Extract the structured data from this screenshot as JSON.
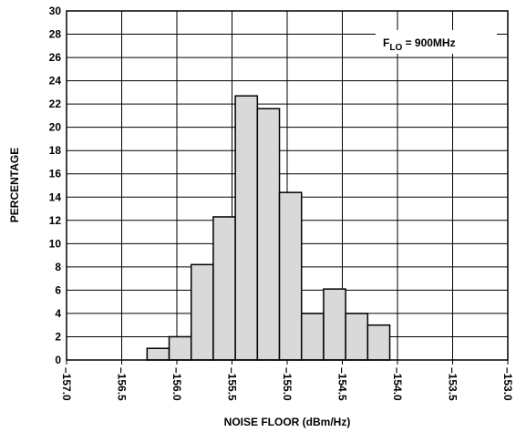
{
  "chart_data": {
    "type": "histogram",
    "annotation": {
      "base": "F",
      "sub": "LO",
      "rest": " = 900MHz"
    },
    "x_label": "NOISE FLOOR (dBm/Hz)",
    "y_label": "PERCENTAGE",
    "bins": [
      -156.27,
      -156.07,
      -155.87,
      -155.67,
      -155.47,
      -155.27,
      -155.07,
      -154.87,
      -154.67,
      -154.47,
      -154.27,
      -154.07
    ],
    "values": [
      1,
      2,
      8.2,
      12.3,
      22.7,
      21.6,
      14.4,
      4,
      6.1,
      4,
      3
    ],
    "color": "#d9d9d9",
    "xlim": [
      -157,
      -153
    ],
    "ylim": [
      0,
      30
    ],
    "xticks": [
      {
        "value": -157,
        "label": "–157.0"
      },
      {
        "value": -156.5,
        "label": "–156.5"
      },
      {
        "value": -156,
        "label": "–156.0"
      },
      {
        "value": -155.5,
        "label": "–155.5"
      },
      {
        "value": -155,
        "label": "–155.0"
      },
      {
        "value": -154.5,
        "label": "–154.5"
      },
      {
        "value": -154,
        "label": "–154.0"
      },
      {
        "value": -153.5,
        "label": "–153.5"
      },
      {
        "value": -153,
        "label": "–153.0"
      }
    ],
    "yticks": [
      0,
      2,
      4,
      6,
      8,
      10,
      12,
      14,
      16,
      18,
      20,
      22,
      24,
      26,
      28,
      30
    ],
    "grid": true
  }
}
